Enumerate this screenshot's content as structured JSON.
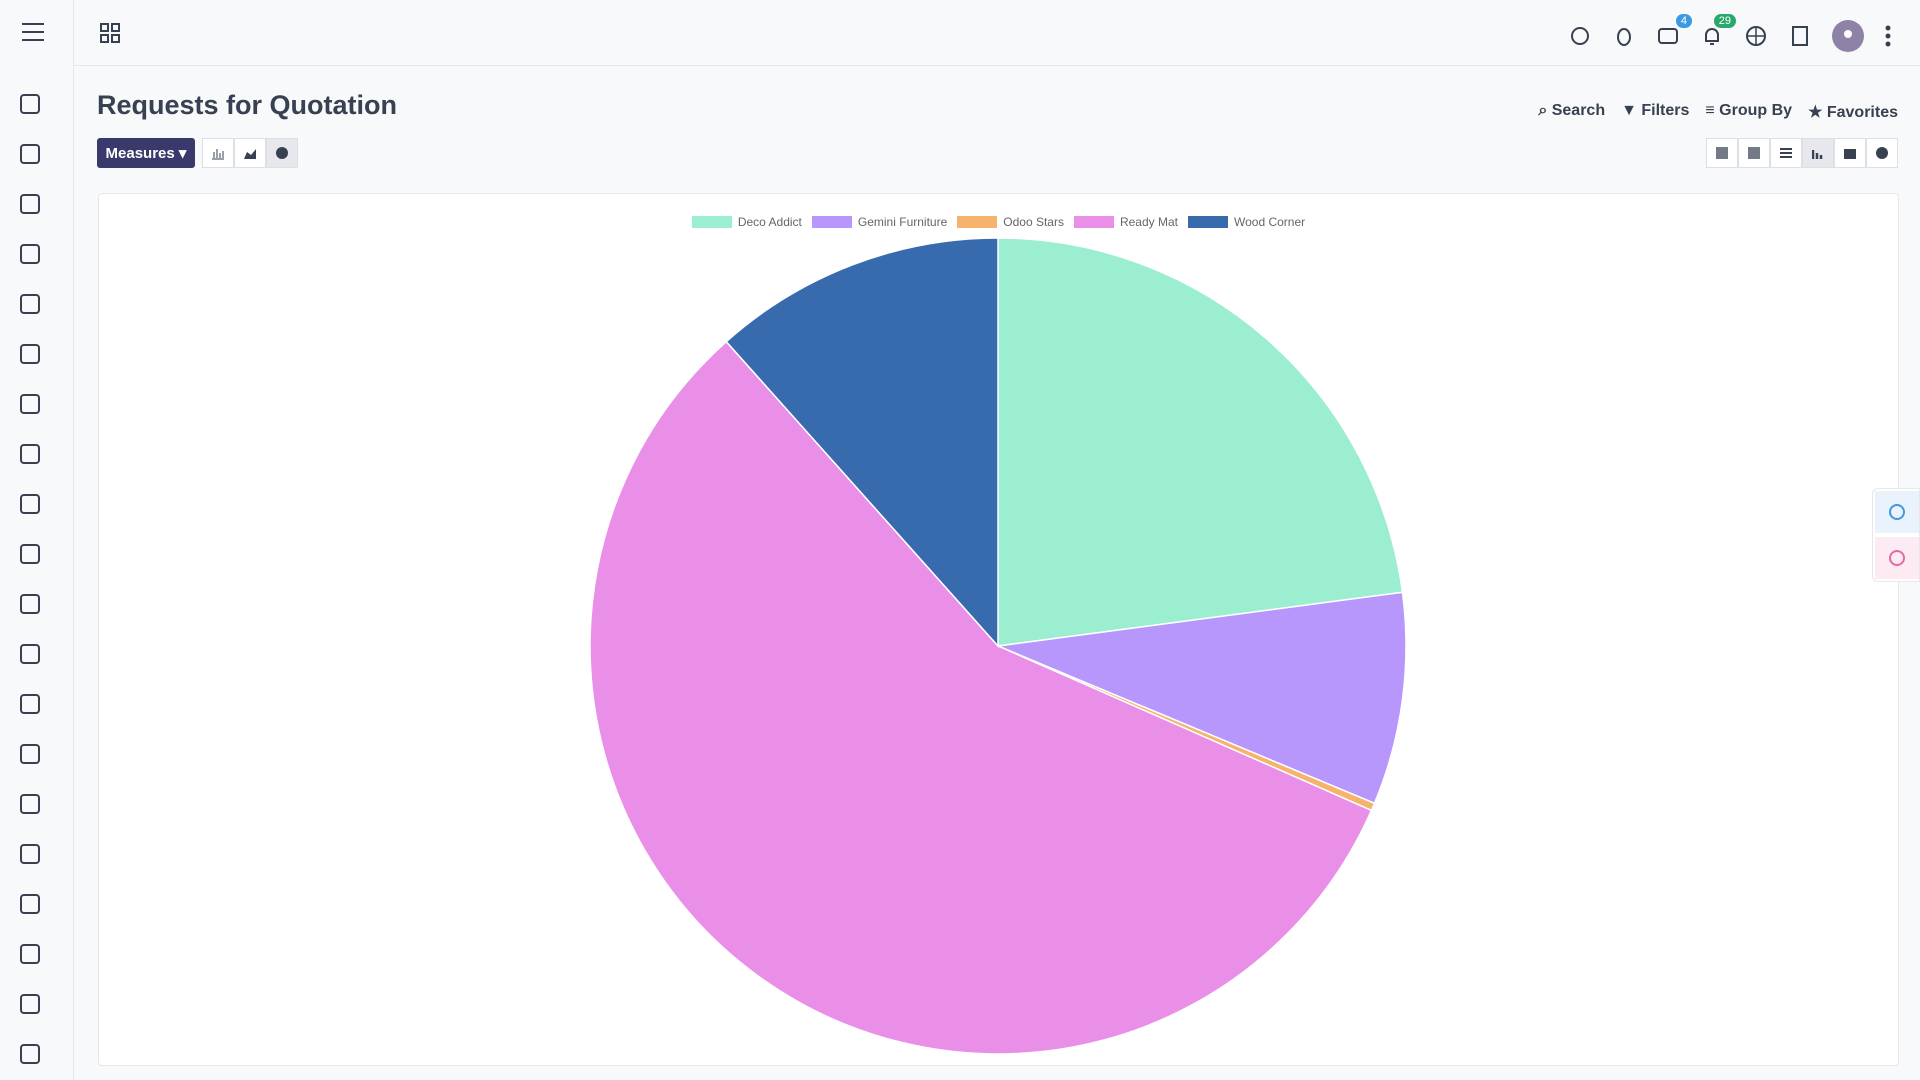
{
  "page": {
    "title": "Requests for Quotation",
    "measures": "Measures",
    "search": "Search",
    "filters": "Filters",
    "group_by": "Group By",
    "favorites": "Favorites",
    "badges": [
      "4",
      "29"
    ]
  },
  "chart_data": {
    "type": "pie",
    "categories": [
      "Deco Addict",
      "Gemini Furniture",
      "Odoo Stars",
      "Ready Mat",
      "Wood Corner"
    ],
    "values": [
      22.9,
      8.4,
      0.3,
      56.8,
      11.6
    ],
    "colors": [
      "#9beecf",
      "#b797fb",
      "#f5b36b",
      "#e98fe8",
      "#386bae"
    ],
    "legend": "top"
  }
}
